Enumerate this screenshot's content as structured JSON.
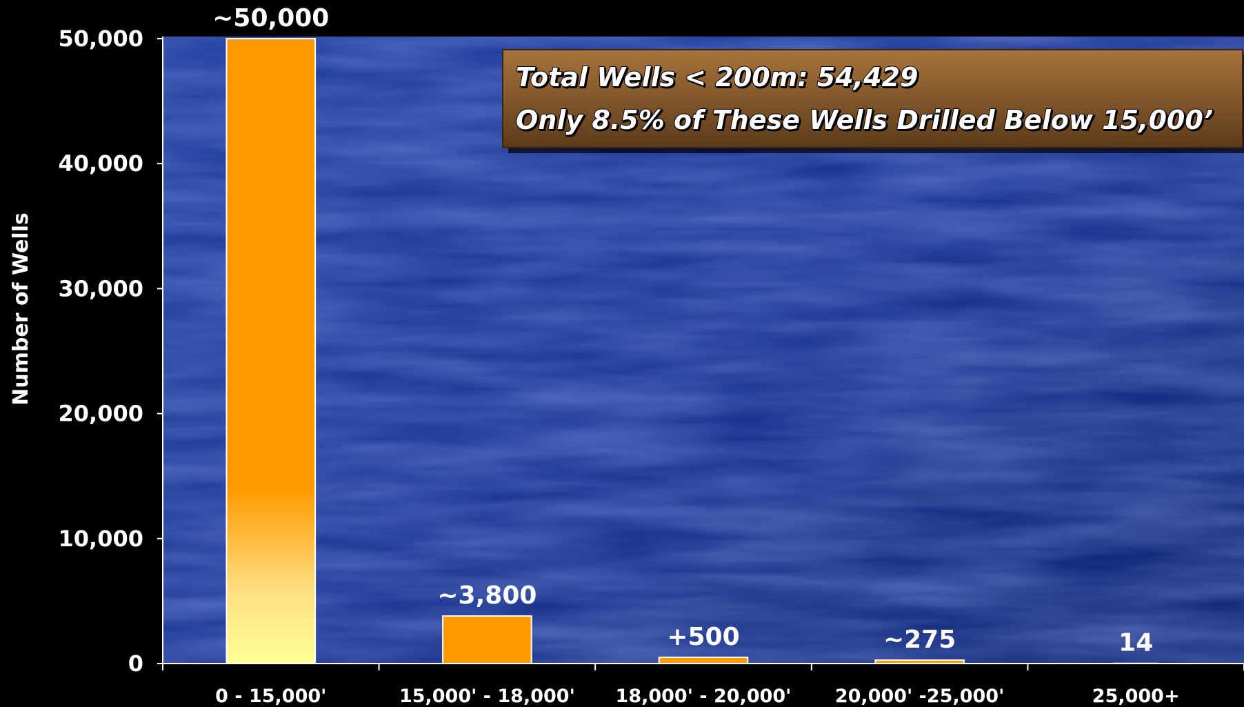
{
  "chart_data": {
    "type": "bar",
    "y_label": "Number of Wells",
    "categories": [
      "0 - 15,000'",
      "15,000' - 18,000'",
      "18,000' - 20,000'",
      "20,000' -25,000'",
      "25,000+"
    ],
    "values": [
      50000,
      3800,
      500,
      275,
      14
    ],
    "value_labels": [
      "~50,000",
      "~3,800",
      "+500",
      "~275",
      "14"
    ],
    "color": "#ff9900",
    "ylim": [
      0,
      50000
    ],
    "yticks": [
      {
        "value": 0,
        "label": "0"
      },
      {
        "value": 10000,
        "label": "10,000"
      },
      {
        "value": 20000,
        "label": "20,000"
      },
      {
        "value": 30000,
        "label": "30,000"
      },
      {
        "value": 40000,
        "label": "40,000"
      },
      {
        "value": 50000,
        "label": "50,000"
      }
    ],
    "annotations": [
      "Total Wells < 200m: 54,429",
      "Only 8.5% of These Wells Drilled Below 15,000’"
    ]
  }
}
